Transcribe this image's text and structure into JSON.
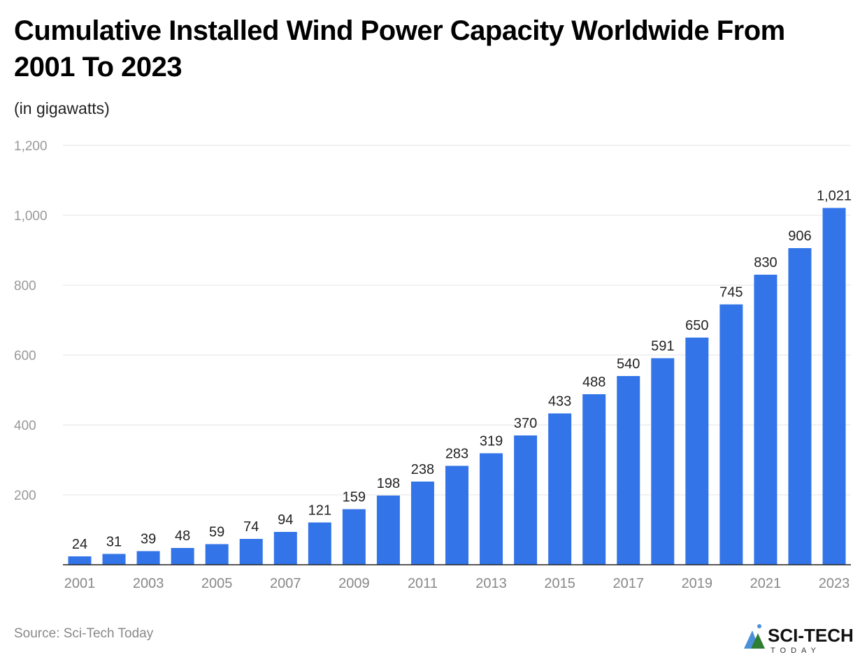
{
  "chart_data": {
    "type": "bar",
    "title": "Cumulative Installed Wind Power Capacity Worldwide From 2001 To 2023",
    "subtitle": "(in gigawatts)",
    "categories": [
      "2001",
      "2002",
      "2003",
      "2004",
      "2005",
      "2006",
      "2007",
      "2008",
      "2009",
      "2010",
      "2011",
      "2012",
      "2013",
      "2014",
      "2015",
      "2016",
      "2017",
      "2018",
      "2019",
      "2020",
      "2021",
      "2022",
      "2023"
    ],
    "values": [
      24,
      31,
      39,
      48,
      59,
      74,
      94,
      121,
      159,
      198,
      238,
      283,
      319,
      370,
      433,
      488,
      540,
      591,
      650,
      745,
      830,
      906,
      1021
    ],
    "data_labels": [
      "24",
      "31",
      "39",
      "48",
      "59",
      "74",
      "94",
      "121",
      "159",
      "198",
      "238",
      "283",
      "319",
      "370",
      "433",
      "488",
      "540",
      "591",
      "650",
      "745",
      "830",
      "906",
      "1,021"
    ],
    "x_tick_labels": [
      "2001",
      "2003",
      "2005",
      "2007",
      "2009",
      "2011",
      "2013",
      "2015",
      "2017",
      "2019",
      "2021",
      "2023"
    ],
    "y_ticks": [
      200,
      400,
      600,
      800,
      1000,
      1200
    ],
    "y_tick_labels": [
      "200",
      "400",
      "600",
      "800",
      "1,000",
      "1,200"
    ],
    "ylim": [
      0,
      1200
    ],
    "grid": true,
    "bar_color": "#3375e8",
    "xlabel": "",
    "ylabel": ""
  },
  "source": "Source: Sci-Tech Today",
  "logo_text": "SCI-TECH TODAY"
}
